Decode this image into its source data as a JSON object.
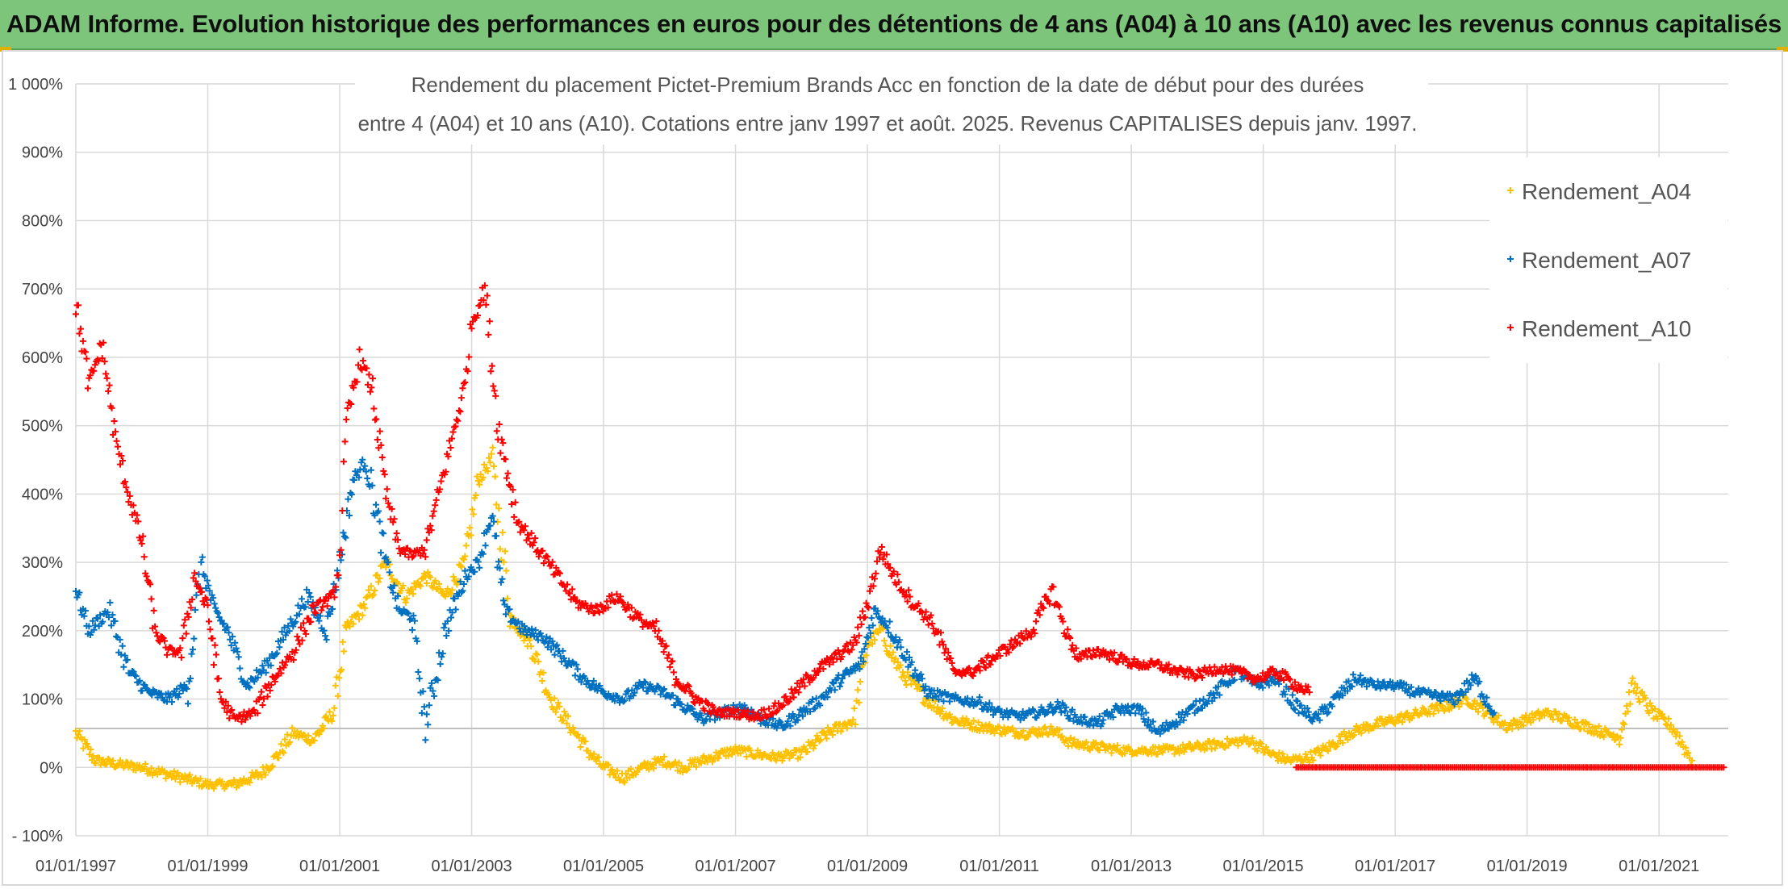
{
  "header": {
    "title": "ADAM Informe. Evolution historique des performances en euros pour des détentions de 4 ans (A04) à 10 ans (A10) avec les revenus connus capitalisés"
  },
  "colors": {
    "banner": "#7dc57b",
    "A04": "#ffc000",
    "A07": "#0070c0",
    "A10": "#ff0000",
    "grid": "#d9d9d9"
  },
  "chart_data": {
    "type": "scatter",
    "title_line1": "Rendement du placement Pictet-Premium Brands Acc en fonction de la date de début pour des durées",
    "title_line2": "entre 4 (A04) et 10 ans (A10). Cotations entre janv 1997 et août. 2025. Revenus CAPITALISES depuis janv. 1997.",
    "xlabel": "",
    "ylabel": "",
    "x_range": [
      "01/01/1997",
      "01/01/2022"
    ],
    "ylim": [
      -100,
      1000
    ],
    "y_ticks": [
      "1 000%",
      "900%",
      "800%",
      "700%",
      "600%",
      "500%",
      "400%",
      "300%",
      "200%",
      "100%",
      "0%",
      "- 100%"
    ],
    "x_ticks": [
      "01/01/1997",
      "01/01/1999",
      "01/01/2001",
      "01/01/2003",
      "01/01/2005",
      "01/01/2007",
      "01/01/2009",
      "01/01/2011",
      "01/01/2013",
      "01/01/2015",
      "01/01/2017",
      "01/01/2019",
      "01/01/2021"
    ],
    "grid": true,
    "legend_position": "top-right",
    "series": [
      {
        "name": "Rendement_A04",
        "x": [
          1997.0,
          1997.3,
          1997.6,
          1998.0,
          1998.4,
          1998.8,
          1999.0,
          1999.4,
          1999.8,
          2000.0,
          2000.3,
          2000.6,
          2000.9,
          2001.1,
          2001.4,
          2001.7,
          2002.0,
          2002.3,
          2002.6,
          2002.9,
          2003.1,
          2003.3,
          2003.6,
          2003.9,
          2004.2,
          2004.5,
          2004.8,
          2005.0,
          2005.3,
          2005.6,
          2005.9,
          2006.2,
          2006.5,
          2006.8,
          2007.0,
          2007.3,
          2007.6,
          2008.0,
          2008.4,
          2008.8,
          2009.0,
          2009.2,
          2009.5,
          2009.9,
          2010.3,
          2010.7,
          2011.0,
          2011.4,
          2011.8,
          2012.1,
          2012.5,
          2012.9,
          2013.2,
          2013.6,
          2014.0,
          2014.4,
          2014.8,
          2015.1,
          2015.4,
          2015.7,
          2016.0,
          2016.3,
          2016.6,
          2017.0,
          2017.4,
          2017.8,
          2018.1,
          2018.4,
          2018.7,
          2019.0,
          2019.3,
          2019.6,
          2019.9,
          2020.2,
          2020.4,
          2020.6,
          2020.9,
          2021.2,
          2021.5
        ],
        "y": [
          50,
          10,
          5,
          0,
          -10,
          -20,
          -25,
          -25,
          -10,
          10,
          50,
          40,
          80,
          200,
          240,
          300,
          250,
          280,
          250,
          300,
          420,
          450,
          220,
          180,
          100,
          60,
          20,
          0,
          -15,
          0,
          10,
          0,
          10,
          20,
          25,
          20,
          15,
          20,
          50,
          70,
          180,
          200,
          140,
          100,
          70,
          60,
          55,
          50,
          55,
          35,
          30,
          25,
          25,
          25,
          30,
          35,
          40,
          20,
          10,
          15,
          30,
          50,
          60,
          70,
          80,
          90,
          100,
          80,
          60,
          70,
          80,
          70,
          60,
          50,
          45,
          120,
          80,
          60,
          10
        ]
      },
      {
        "name": "Rendement_A07",
        "x": [
          1997.0,
          1997.2,
          1997.5,
          1997.8,
          1998.1,
          1998.4,
          1998.7,
          1998.9,
          1999.1,
          1999.3,
          1999.6,
          1999.9,
          2000.2,
          2000.5,
          2000.8,
          2001.0,
          2001.2,
          2001.4,
          2001.7,
          2001.9,
          2002.1,
          2002.3,
          2002.6,
          2002.9,
          2003.1,
          2003.3,
          2003.5,
          2003.8,
          2004.1,
          2004.4,
          2004.7,
          2005.0,
          2005.3,
          2005.6,
          2005.9,
          2006.2,
          2006.5,
          2006.8,
          2007.1,
          2007.4,
          2007.7,
          2008.0,
          2008.3,
          2008.6,
          2008.9,
          2009.1,
          2009.3,
          2009.6,
          2009.9,
          2010.3,
          2010.7,
          2011.0,
          2011.3,
          2011.6,
          2011.9,
          2012.2,
          2012.5,
          2012.8,
          2013.1,
          2013.4,
          2013.7,
          2014.0,
          2014.3,
          2014.6,
          2014.9,
          2015.2,
          2015.5,
          2015.8,
          2016.1,
          2016.4,
          2016.7,
          2017.0,
          2017.3,
          2017.6,
          2017.9,
          2018.2,
          2018.5
        ],
        "y": [
          260,
          200,
          230,
          140,
          110,
          100,
          120,
          300,
          230,
          200,
          120,
          150,
          200,
          250,
          200,
          300,
          420,
          450,
          300,
          230,
          220,
          60,
          200,
          280,
          300,
          370,
          230,
          200,
          190,
          160,
          130,
          110,
          100,
          120,
          110,
          90,
          70,
          80,
          90,
          70,
          60,
          80,
          100,
          130,
          150,
          230,
          210,
          160,
          110,
          100,
          95,
          80,
          75,
          80,
          90,
          70,
          65,
          85,
          85,
          50,
          70,
          90,
          110,
          140,
          120,
          130,
          90,
          70,
          100,
          130,
          120,
          120,
          110,
          105,
          100,
          130,
          80
        ]
      },
      {
        "name": "Rendement_A10",
        "x": [
          1997.0,
          1997.2,
          1997.4,
          1997.6,
          1997.8,
          1998.0,
          1998.2,
          1998.4,
          1998.6,
          1998.8,
          1999.0,
          1999.2,
          1999.4,
          1999.7,
          2000.0,
          2000.3,
          2000.6,
          2000.9,
          2001.0,
          2001.1,
          2001.3,
          2001.5,
          2001.7,
          2001.9,
          2002.1,
          2002.3,
          2002.5,
          2002.7,
          2002.9,
          2003.0,
          2003.2,
          2003.4,
          2003.7,
          2004.0,
          2004.3,
          2004.6,
          2004.9,
          2005.2,
          2005.5,
          2005.8,
          2006.1,
          2006.4,
          2006.7,
          2007.0,
          2007.3,
          2007.6,
          2007.9,
          2008.2,
          2008.5,
          2008.8,
          2009.0,
          2009.2,
          2009.4,
          2009.7,
          2010.0,
          2010.3,
          2010.6,
          2010.9,
          2011.2,
          2011.5,
          2011.8,
          2012.0,
          2012.2,
          2012.5,
          2012.8,
          2013.1,
          2013.4,
          2013.7,
          2014.0,
          2014.3,
          2014.6,
          2014.9,
          2015.2,
          2015.5,
          2015.7
        ],
        "y": [
          680,
          560,
          620,
          480,
          400,
          330,
          200,
          170,
          170,
          280,
          230,
          100,
          70,
          80,
          130,
          170,
          230,
          250,
          300,
          500,
          600,
          550,
          400,
          320,
          310,
          320,
          400,
          480,
          560,
          650,
          700,
          500,
          360,
          320,
          280,
          240,
          230,
          250,
          220,
          200,
          130,
          100,
          80,
          80,
          75,
          85,
          110,
          140,
          160,
          180,
          240,
          320,
          280,
          240,
          210,
          140,
          140,
          160,
          180,
          200,
          260,
          200,
          160,
          170,
          160,
          150,
          150,
          140,
          135,
          145,
          140,
          130,
          140,
          120,
          110
        ]
      }
    ],
    "flat_zero_band": {
      "series": "Rendement_A10",
      "x_start": 2015.5,
      "x_end": 2022.0,
      "y": 0
    }
  }
}
